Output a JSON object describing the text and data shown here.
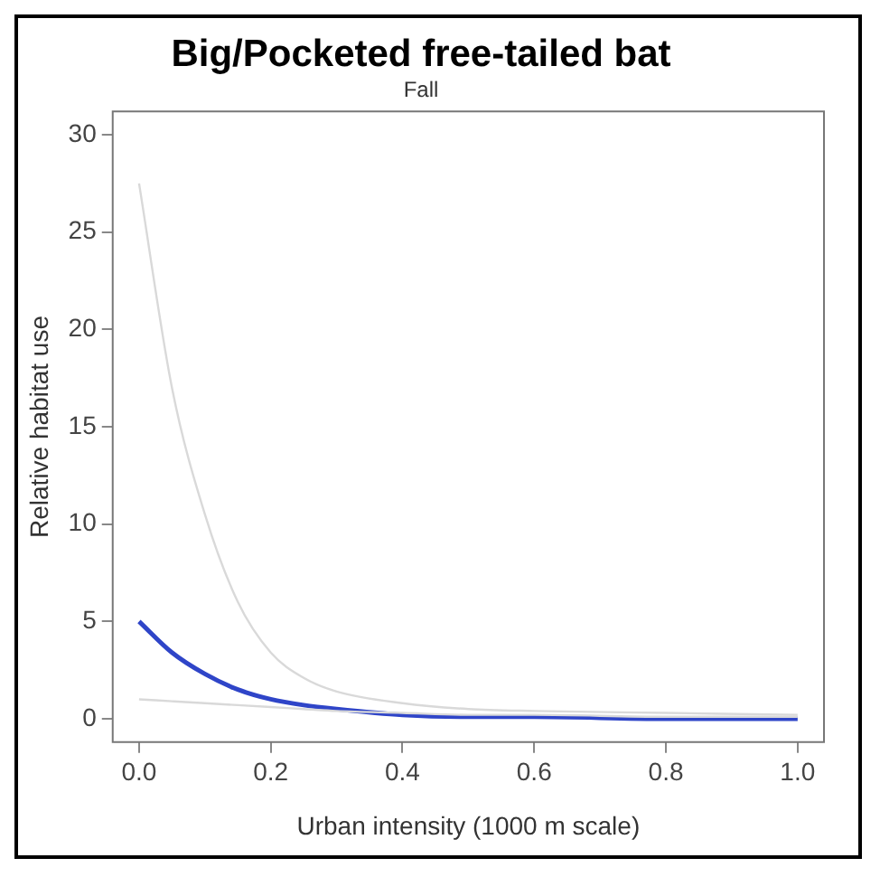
{
  "chart_data": {
    "type": "line",
    "title": "Big/Pocketed free-tailed bat",
    "subtitle": "Fall",
    "xlabel": "Urban intensity (1000 m scale)",
    "ylabel": "Relative habitat use",
    "x": [
      0,
      0.05,
      0.1,
      0.15,
      0.2,
      0.25,
      0.3,
      0.4,
      0.5,
      0.6,
      0.8,
      1.0
    ],
    "series": [
      {
        "color": "#d9d9d9",
        "values": [
          27.5,
          17,
          10.5,
          6,
          3.4,
          2.1,
          1.4,
          0.8,
          0.5,
          0.4,
          0.3,
          0.2
        ]
      },
      {
        "color": "#d9d9d9",
        "values": [
          1,
          0.9,
          0.8,
          0.7,
          0.6,
          0.5,
          0.4,
          0.3,
          0.2,
          0.2,
          0.1,
          0.1
        ]
      },
      {
        "color": "#2f45c8",
        "values": [
          5,
          3.4,
          2.3,
          1.5,
          1.0,
          0.7,
          0.5,
          0.2,
          0.1,
          0.1,
          0,
          0
        ]
      }
    ],
    "xlim": [
      -0.04,
      1.04
    ],
    "ylim": [
      -1.2,
      31.2
    ],
    "xticks": [
      {
        "value": 0,
        "label": "0.0"
      },
      0.2,
      0.4,
      0.6,
      0.8,
      {
        "value": 1,
        "label": "1.0"
      }
    ],
    "yticks": [
      0,
      5,
      10,
      15,
      20,
      25,
      30
    ],
    "grid": false,
    "legend": false,
    "marker": "none",
    "line_style": "solid"
  }
}
